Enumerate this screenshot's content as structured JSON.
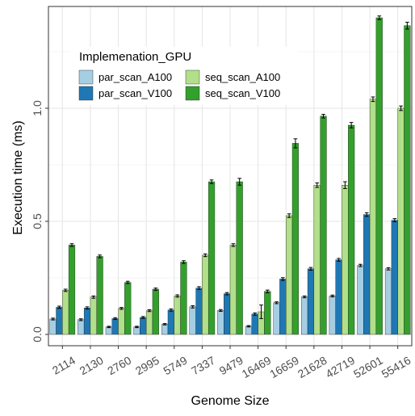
{
  "chart_data": {
    "type": "bar",
    "title": "",
    "xlabel": "Genome Size",
    "ylabel": "Execution time (ms)",
    "ylim": [
      -0.05,
      1.45
    ],
    "yticks": [
      0.0,
      0.5,
      1.0
    ],
    "ytick_labels": [
      "0.0",
      "0.5",
      "1.0"
    ],
    "grid": true,
    "legend_title": "Implemenation_GPU",
    "legend_position": "top-left",
    "categories": [
      "2114",
      "2130",
      "2760",
      "2995",
      "5749",
      "7337",
      "9479",
      "16469",
      "16659",
      "21628",
      "42719",
      "52601",
      "55416"
    ],
    "series": [
      {
        "name": "par_scan_A100",
        "color": "#a6cee3",
        "values": [
          0.068,
          0.065,
          0.033,
          0.033,
          0.045,
          0.122,
          0.106,
          0.036,
          0.14,
          0.166,
          0.17,
          0.305,
          0.29
        ],
        "errors": [
          0.004,
          0.004,
          0.003,
          0.003,
          0.003,
          0.005,
          0.004,
          0.003,
          0.004,
          0.004,
          0.004,
          0.005,
          0.005
        ]
      },
      {
        "name": "par_scan_V100",
        "color": "#1f78b4",
        "values": [
          0.12,
          0.117,
          0.07,
          0.075,
          0.108,
          0.205,
          0.18,
          0.09,
          0.245,
          0.29,
          0.33,
          0.53,
          0.505
        ],
        "errors": [
          0.005,
          0.005,
          0.004,
          0.004,
          0.005,
          0.006,
          0.005,
          0.005,
          0.006,
          0.006,
          0.006,
          0.008,
          0.007
        ]
      },
      {
        "name": "seq_scan_A100",
        "color": "#b2df8a",
        "values": [
          0.195,
          0.165,
          0.115,
          0.105,
          0.17,
          0.35,
          0.395,
          0.1,
          0.525,
          0.66,
          0.66,
          1.04,
          1.0
        ],
        "errors": [
          0.005,
          0.005,
          0.004,
          0.004,
          0.005,
          0.006,
          0.006,
          0.03,
          0.008,
          0.01,
          0.015,
          0.01,
          0.01
        ]
      },
      {
        "name": "seq_scan_V100",
        "color": "#33a02c",
        "values": [
          0.395,
          0.345,
          0.23,
          0.2,
          0.32,
          0.675,
          0.675,
          0.19,
          0.845,
          0.965,
          0.925,
          1.4,
          1.365
        ],
        "errors": [
          0.006,
          0.006,
          0.005,
          0.005,
          0.006,
          0.008,
          0.015,
          0.006,
          0.02,
          0.008,
          0.012,
          0.008,
          0.015
        ]
      }
    ]
  }
}
